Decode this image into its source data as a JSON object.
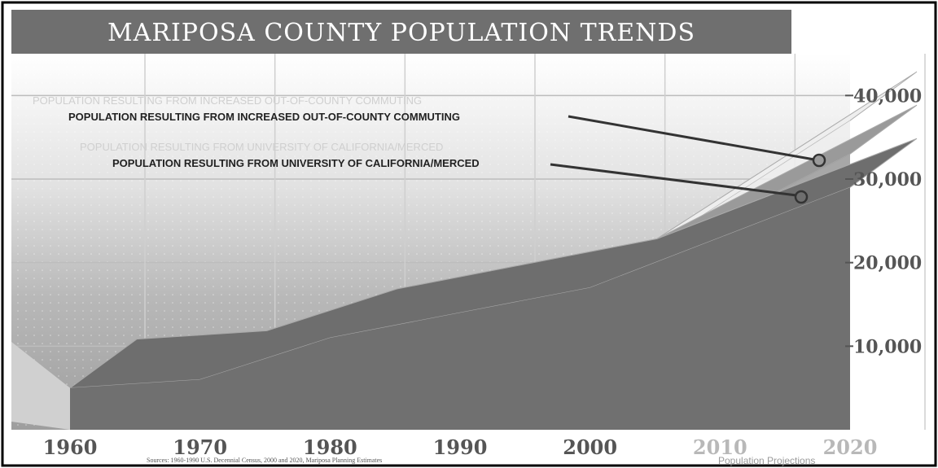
{
  "chart_data": {
    "type": "area",
    "title": "MARIPOSA COUNTY POPULATION TRENDS",
    "x": [
      1960,
      1970,
      1980,
      1990,
      2000,
      2010,
      2020
    ],
    "x_tick_labels": [
      "1960",
      "1970",
      "1980",
      "1990",
      "2000",
      "2010",
      "2020"
    ],
    "projected_from": 2000,
    "ylim": [
      0,
      45000
    ],
    "y_ticks": [
      10000,
      20000,
      30000,
      40000
    ],
    "y_tick_labels": [
      "10,000",
      "20,000",
      "30,000",
      "40,000"
    ],
    "series": [
      {
        "name": "",
        "values": [
          5000,
          6000,
          11000,
          14000,
          17000,
          23000,
          29000
        ],
        "color": "#6e6e6e"
      },
      {
        "name": "POPULATION RESULTING FROM UNIVERSITY OF CALIFORNIA/MERCED",
        "values": [
          5000,
          6000,
          11000,
          14000,
          17000,
          25000,
          33000
        ],
        "color": "#9a9a9a"
      },
      {
        "name": "POPULATION RESULTING FROM INCREASED OUT-OF-COUNTY COMMUTING",
        "values": [
          5000,
          6000,
          11000,
          14000,
          17000,
          27000,
          37000
        ],
        "color": "#eeeeee"
      }
    ],
    "annotations": [
      "POPULATION RESULTING FROM INCREASED OUT-OF-COUNTY COMMUTING",
      "POPULATION RESULTING FROM UNIVERSITY OF CALIFORNIA/MERCED"
    ],
    "grid": true,
    "source": "Sources: 1960-1990 U.S. Decennial Census, 2000 and 2020, Mariposa Planning Estimates",
    "projection_label": "Population Projections"
  },
  "colors": {
    "title_bg": "#6f6f6f",
    "frame": "#000000",
    "front_face": "#707070",
    "top_face": "#8c8c8c",
    "projection_top": "#f2f2f2"
  }
}
